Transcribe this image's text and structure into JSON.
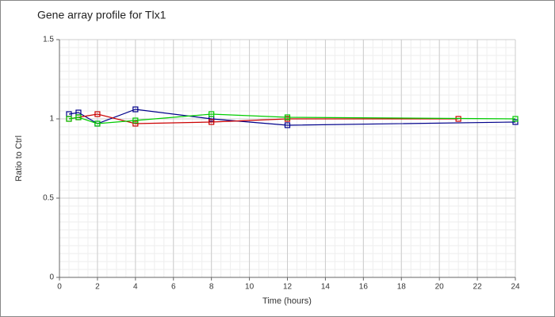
{
  "chart_data": {
    "type": "line",
    "title": "Gene array profile for Tlx1",
    "x_label": "Time (hours)",
    "y_label": "Ratio to Ctrl",
    "xlim": [
      0,
      24
    ],
    "xticks": [
      0,
      2,
      4,
      6,
      8,
      10,
      12,
      14,
      16,
      18,
      20,
      22,
      24
    ],
    "ylim": [
      0,
      1.5
    ],
    "yticks": [
      0,
      0.5,
      1,
      1.5
    ],
    "grid": true,
    "series": [
      {
        "color": "#00008b",
        "x": [
          0.5,
          1,
          2,
          4,
          8,
          12,
          24
        ],
        "values": [
          1.03,
          1.04,
          0.97,
          1.06,
          1.0,
          0.96,
          0.98
        ]
      },
      {
        "color": "#cc0000",
        "x": [
          0.5,
          1,
          2,
          4,
          8,
          12,
          21
        ],
        "values": [
          1.0,
          1.01,
          1.03,
          0.97,
          0.98,
          1.0,
          1.0
        ]
      },
      {
        "color": "#00cc00",
        "x": [
          0.5,
          1,
          2,
          4,
          8,
          12,
          24
        ],
        "values": [
          1.0,
          1.01,
          0.97,
          0.99,
          1.03,
          1.01,
          1.0
        ]
      }
    ]
  }
}
